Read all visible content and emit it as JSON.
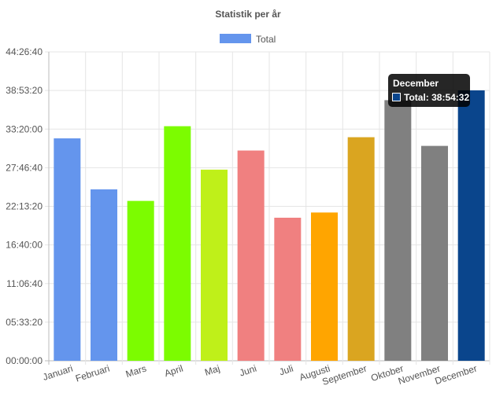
{
  "chart_data": {
    "type": "bar",
    "title": "Statistik per år",
    "legend": {
      "position": "top",
      "label": "Total",
      "color": "#6495ED"
    },
    "categories": [
      "Januari",
      "Februari",
      "Mars",
      "April",
      "Maj",
      "Juni",
      "Juli",
      "Augusti",
      "September",
      "Oktober",
      "November",
      "December"
    ],
    "series": [
      {
        "name": "Total",
        "values": [
          "32:00:00",
          "24:40:00",
          "23:00:00",
          "33:45:00",
          "27:30:00",
          "30:15:00",
          "20:35:00",
          "21:20:00",
          "32:10:00",
          "37:30:00",
          "30:55:00",
          "38:54:32"
        ],
        "colors": [
          "#6495ED",
          "#6495ED",
          "#7CFC00",
          "#7CFC00",
          "#BFF019",
          "#F08080",
          "#F08080",
          "#FFA500",
          "#DAA520",
          "#808080",
          "#808080",
          "#0A458C"
        ]
      }
    ],
    "yticks": [
      "00:00:00",
      "05:33:20",
      "11:06:40",
      "16:40:00",
      "22:13:20",
      "27:46:40",
      "33:20:00",
      "38:53:20",
      "44:26:40"
    ],
    "ylim_seconds": [
      0,
      160000
    ],
    "grid": true,
    "tooltip": {
      "title": "December",
      "body": "Total: 38:54:32",
      "color": "#0A458C"
    }
  }
}
